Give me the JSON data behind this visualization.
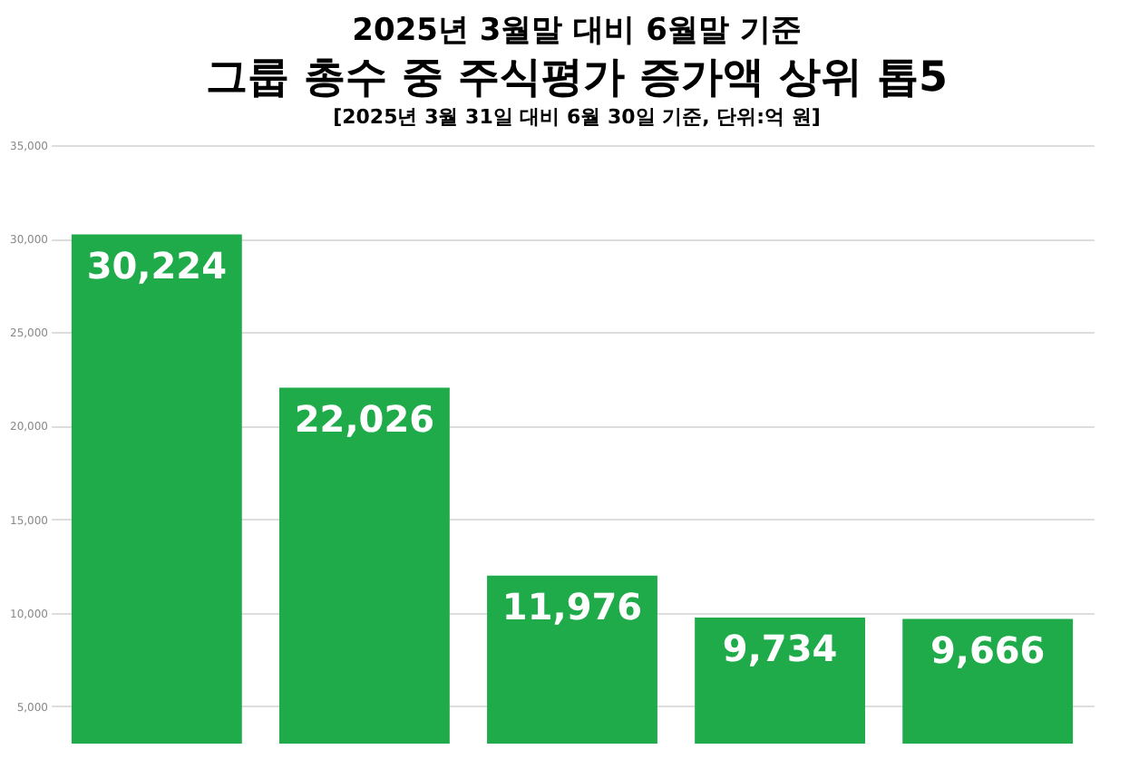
{
  "chart_data": {
    "type": "bar",
    "title": "2025년 3월말 대비 6월말 기준",
    "subtitle": "그룹 총수 중 주식평가 증가액 상위 톱5",
    "annotations": [
      "[2025년 3월 31일 대비 6월 30일 기준, 단위:억 원]"
    ],
    "categories": [
      null,
      null,
      null,
      null,
      null
    ],
    "values": [
      30224,
      22026,
      11976,
      9734,
      9666
    ],
    "color": "#1fab4a",
    "value_labels": [
      "30,224",
      "22,026",
      "11,976",
      "9,734",
      "9,666"
    ],
    "ylim": [
      3000,
      35000
    ],
    "yticks": [
      {
        "value": 5000,
        "label": "5,000"
      },
      {
        "value": 10000,
        "label": "10,000"
      },
      {
        "value": 15000,
        "label": "15,000"
      },
      {
        "value": 20000,
        "label": "20,000"
      },
      {
        "value": 25000,
        "label": "25,000"
      },
      {
        "value": 30000,
        "label": "30,000"
      },
      {
        "value": 35000,
        "label": "35,000"
      }
    ],
    "grid": "y",
    "tick_labels": "y"
  }
}
